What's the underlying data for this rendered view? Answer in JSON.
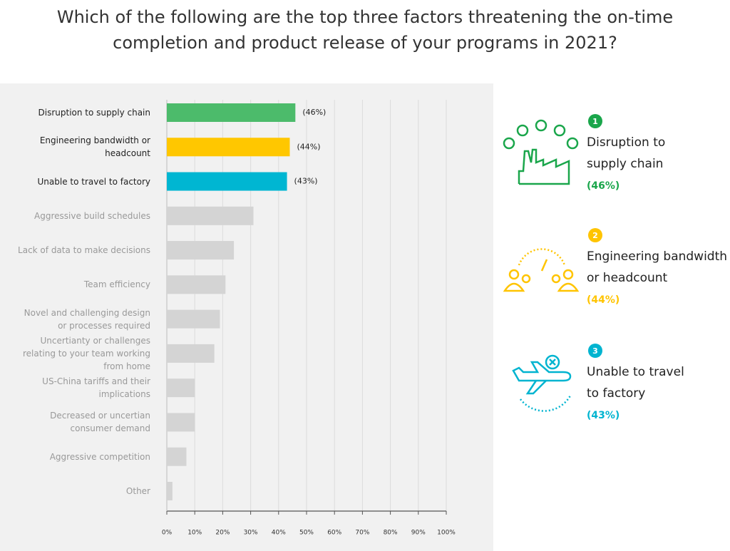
{
  "title": "Which of the following are the top three factors threatening the on-time completion and product release of your programs in 2021?",
  "chart_data": {
    "type": "bar",
    "orientation": "horizontal",
    "categories": [
      "Disruption to supply chain",
      "Engineering bandwidth or headcount",
      "Unable to travel to factory",
      "Aggressive build schedules",
      "Lack of data to make decisions",
      "Team efficiency",
      "Novel and challenging design or processes required",
      "Uncertianty or challenges relating to your team working from home",
      "US-China tariffs and their implications",
      "Decreased or uncertian consumer demand",
      "Aggressive competition",
      "Other"
    ],
    "values": [
      46,
      44,
      43,
      31,
      24,
      21,
      19,
      17,
      10,
      10,
      7,
      2
    ],
    "value_labels": [
      "(46%)",
      "(44%)",
      "(43%)",
      null,
      null,
      null,
      null,
      null,
      null,
      null,
      null,
      null
    ],
    "colors": [
      "#4cbb6b",
      "#ffc700",
      "#00b6d2",
      "#d4d4d4",
      "#d4d4d4",
      "#d4d4d4",
      "#d4d4d4",
      "#d4d4d4",
      "#d4d4d4",
      "#d4d4d4",
      "#d4d4d4",
      "#d4d4d4"
    ],
    "category_colors": [
      "#222222",
      "#222222",
      "#222222",
      "#999999",
      "#999999",
      "#999999",
      "#999999",
      "#999999",
      "#999999",
      "#999999",
      "#999999",
      "#999999"
    ],
    "xlim": [
      0,
      100
    ],
    "xticks": [
      {
        "value": 0,
        "label": "0%"
      },
      {
        "value": 10,
        "label": "10%"
      },
      {
        "value": 20,
        "label": "20%"
      },
      {
        "value": 30,
        "label": "30%"
      },
      {
        "value": 40,
        "label": "40%"
      },
      {
        "value": 50,
        "label": "50%"
      },
      {
        "value": 60,
        "label": "60%"
      },
      {
        "value": 70,
        "label": "70%"
      },
      {
        "value": 80,
        "label": "80%"
      },
      {
        "value": 90,
        "label": "90%"
      },
      {
        "value": 100,
        "label": "100%"
      }
    ],
    "grid": true
  },
  "highlights": [
    {
      "rank": 1,
      "lines": [
        "Disruption to",
        "supply chain"
      ],
      "value_label": "(46%)",
      "color": "#1aa64b"
    },
    {
      "rank": 2,
      "lines": [
        "Engineering bandwidth",
        "or headcount"
      ],
      "value_label": "(44%)",
      "color": "#ffc400"
    },
    {
      "rank": 3,
      "lines": [
        "Unable to travel",
        "to factory"
      ],
      "value_label": "(43%)",
      "color": "#00b4d0"
    }
  ]
}
